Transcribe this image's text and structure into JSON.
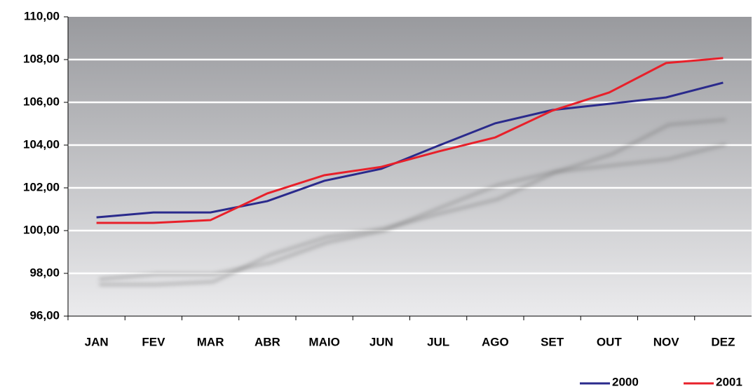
{
  "chart_data": {
    "type": "line",
    "categories": [
      "JAN",
      "FEV",
      "MAR",
      "ABR",
      "MAIO",
      "JUN",
      "JUL",
      "AGO",
      "SET",
      "OUT",
      "NOV",
      "DEZ"
    ],
    "series": [
      {
        "name": "2000",
        "color": "#2a2a8c",
        "values": [
          100.62,
          100.85,
          100.85,
          101.38,
          102.33,
          102.89,
          103.97,
          105.02,
          105.64,
          105.93,
          106.23,
          106.92
        ]
      },
      {
        "name": "2001",
        "color": "#e8202a",
        "values": [
          100.36,
          100.36,
          100.49,
          101.74,
          102.59,
          102.98,
          103.7,
          104.36,
          105.61,
          106.46,
          107.84,
          108.07
        ]
      }
    ],
    "ylim": [
      96,
      110
    ],
    "yticks": [
      {
        "value": 96,
        "label": "96,00"
      },
      {
        "value": 98,
        "label": "98,00"
      },
      {
        "value": 100,
        "label": "100,00"
      },
      {
        "value": 102,
        "label": "102,00"
      },
      {
        "value": 104,
        "label": "104,00"
      },
      {
        "value": 106,
        "label": "106,00"
      },
      {
        "value": 108,
        "label": "108,00"
      },
      {
        "value": 110,
        "label": "110,00"
      }
    ],
    "grid": true,
    "legend": "bottom-right"
  }
}
